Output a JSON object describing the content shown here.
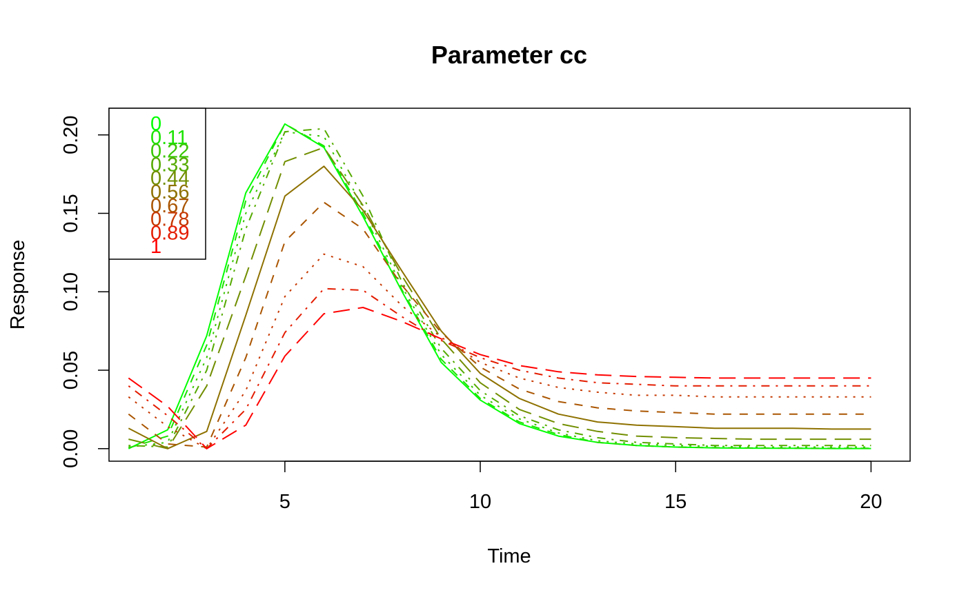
{
  "chart_data": {
    "type": "line",
    "title": "Parameter cc",
    "xlabel": "Time",
    "ylabel": "Response",
    "xlim": [
      0.5,
      21
    ],
    "ylim": [
      -0.008,
      0.217
    ],
    "xticks": [
      5,
      10,
      15,
      20
    ],
    "yticks": [
      0.0,
      0.05,
      0.1,
      0.15,
      0.2
    ],
    "xtick_labels": [
      "5",
      "10",
      "15",
      "20"
    ],
    "ytick_labels": [
      "0.00",
      "0.05",
      "0.10",
      "0.15",
      "0.20"
    ],
    "grid": false,
    "legend_position": "top-left",
    "x": [
      1,
      2,
      3,
      4,
      5,
      6,
      7,
      8,
      9,
      10,
      11,
      12,
      13,
      14,
      15,
      16,
      17,
      18,
      19,
      20
    ],
    "series": [
      {
        "name": "0",
        "color": "#00ff00",
        "dash": "solid",
        "values": [
          0.0,
          0.012,
          0.072,
          0.163,
          0.207,
          0.192,
          0.148,
          0.1,
          0.055,
          0.031,
          0.016,
          0.008,
          0.004,
          0.002,
          0.001,
          0.0005,
          0.0003,
          0.0002,
          0.0001,
          0.0001
        ]
      },
      {
        "name": "0.11",
        "color": "#1ce300",
        "dash": "dashed",
        "values": [
          0.0005,
          0.008,
          0.066,
          0.158,
          0.207,
          0.193,
          0.15,
          0.101,
          0.057,
          0.032,
          0.017,
          0.009,
          0.004,
          0.002,
          0.001,
          0.0006,
          0.0004,
          0.0003,
          0.0002,
          0.0002
        ]
      },
      {
        "name": "0.22",
        "color": "#38c600",
        "dash": "dotted",
        "values": [
          0.001,
          0.004,
          0.058,
          0.15,
          0.202,
          0.199,
          0.154,
          0.103,
          0.06,
          0.034,
          0.019,
          0.01,
          0.005,
          0.003,
          0.002,
          0.0015,
          0.001,
          0.001,
          0.001,
          0.001
        ]
      },
      {
        "name": "0.33",
        "color": "#55aa00",
        "dash": "dotdash",
        "values": [
          0.002,
          0.001,
          0.05,
          0.14,
          0.202,
          0.204,
          0.161,
          0.106,
          0.064,
          0.037,
          0.021,
          0.012,
          0.007,
          0.004,
          0.003,
          0.002,
          0.002,
          0.002,
          0.002,
          0.002
        ]
      },
      {
        "name": "0.44",
        "color": "#718e00",
        "dash": "longdash",
        "values": [
          0.006,
          0.0,
          0.04,
          0.11,
          0.183,
          0.192,
          0.155,
          0.11,
          0.07,
          0.042,
          0.025,
          0.016,
          0.011,
          0.008,
          0.007,
          0.0065,
          0.006,
          0.006,
          0.006,
          0.006
        ]
      },
      {
        "name": "0.56",
        "color": "#8e7100",
        "dash": "solid",
        "values": [
          0.013,
          0.0,
          0.011,
          0.085,
          0.161,
          0.18,
          0.152,
          0.113,
          0.075,
          0.048,
          0.032,
          0.022,
          0.017,
          0.015,
          0.014,
          0.013,
          0.013,
          0.013,
          0.0125,
          0.0125
        ]
      },
      {
        "name": "0.67",
        "color": "#aa5500",
        "dash": "dashed",
        "values": [
          0.022,
          0.003,
          0.001,
          0.058,
          0.132,
          0.157,
          0.14,
          0.104,
          0.074,
          0.052,
          0.038,
          0.03,
          0.026,
          0.024,
          0.023,
          0.022,
          0.022,
          0.022,
          0.022,
          0.022
        ]
      },
      {
        "name": "0.78",
        "color": "#c63800",
        "dash": "dotted",
        "values": [
          0.033,
          0.014,
          0.0,
          0.037,
          0.097,
          0.124,
          0.116,
          0.091,
          0.071,
          0.055,
          0.045,
          0.039,
          0.036,
          0.034,
          0.034,
          0.033,
          0.033,
          0.033,
          0.033,
          0.033
        ]
      },
      {
        "name": "0.89",
        "color": "#e31c00",
        "dash": "dotdash",
        "values": [
          0.04,
          0.021,
          0.0,
          0.025,
          0.074,
          0.102,
          0.101,
          0.084,
          0.069,
          0.058,
          0.05,
          0.045,
          0.042,
          0.041,
          0.04,
          0.04,
          0.04,
          0.04,
          0.04,
          0.04
        ]
      },
      {
        "name": "1",
        "color": "#ff0000",
        "dash": "longdash",
        "values": [
          0.045,
          0.027,
          0.0,
          0.015,
          0.059,
          0.086,
          0.09,
          0.081,
          0.07,
          0.06,
          0.053,
          0.049,
          0.047,
          0.046,
          0.0455,
          0.045,
          0.045,
          0.045,
          0.045,
          0.045
        ]
      }
    ]
  }
}
